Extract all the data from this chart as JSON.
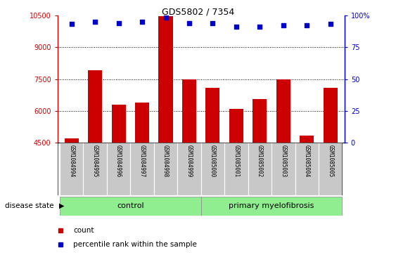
{
  "title": "GDS5802 / 7354",
  "samples": [
    "GSM1084994",
    "GSM1084995",
    "GSM1084996",
    "GSM1084997",
    "GSM1084998",
    "GSM1084999",
    "GSM1085000",
    "GSM1085001",
    "GSM1085002",
    "GSM1085003",
    "GSM1085004",
    "GSM1085005"
  ],
  "counts": [
    4700,
    7900,
    6300,
    6400,
    10450,
    7500,
    7100,
    6100,
    6550,
    7500,
    4850,
    7100
  ],
  "percentile_ranks": [
    93,
    95,
    94,
    95,
    98,
    94,
    94,
    91,
    91,
    92,
    92,
    93
  ],
  "bar_color": "#cc0000",
  "dot_color": "#0000cc",
  "ylim_left": [
    4500,
    10500
  ],
  "ylim_right": [
    0,
    100
  ],
  "yticks_left": [
    4500,
    6000,
    7500,
    9000,
    10500
  ],
  "yticks_right": [
    0,
    25,
    50,
    75,
    100
  ],
  "legend_items": [
    {
      "label": "count",
      "color": "#cc0000"
    },
    {
      "label": "percentile rank within the sample",
      "color": "#0000cc"
    }
  ],
  "control_count": 6,
  "pm_count": 6,
  "gray_bg": "#c8c8c8",
  "green_bg": "#90ee90",
  "border_color": "#888888"
}
